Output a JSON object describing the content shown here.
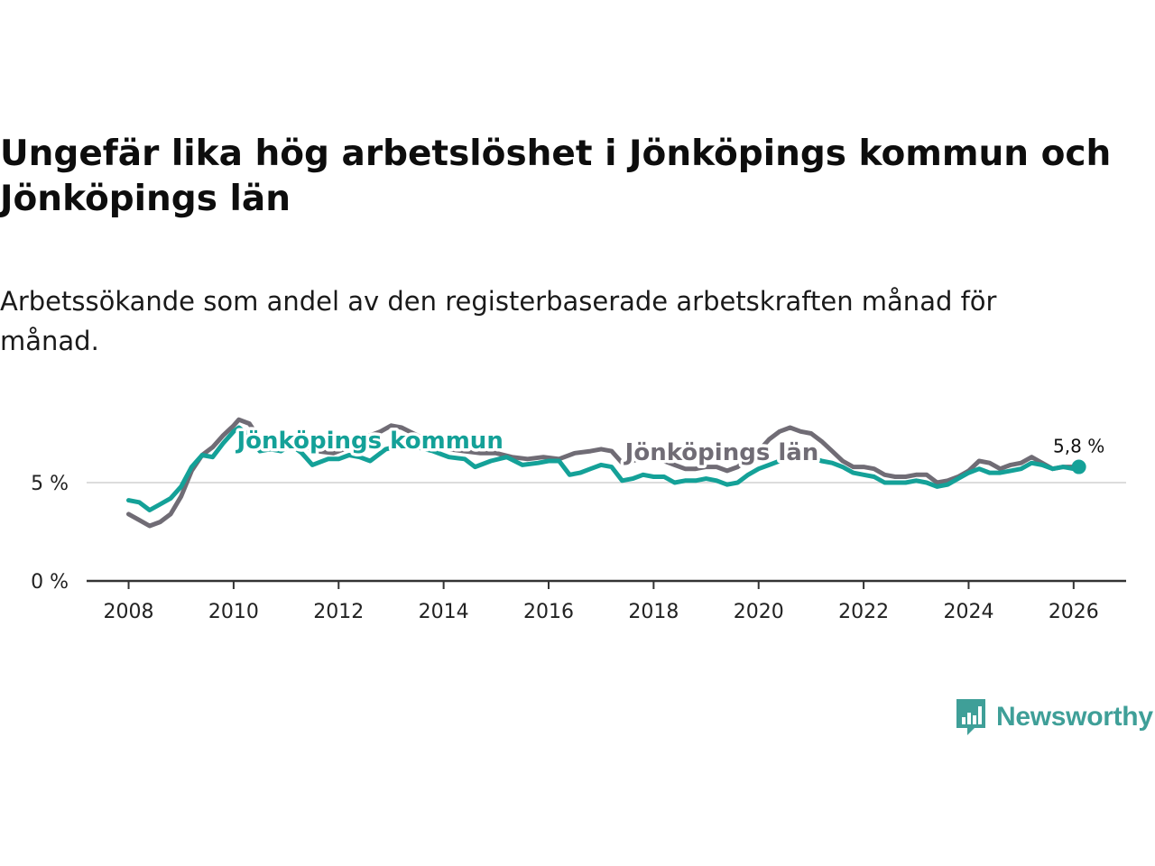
{
  "header": {
    "title": "Ungefär lika hög arbetslöshet i Jönköpings kommun och Jönköpings län",
    "subtitle": "Arbetssökande som andel av den registerbaserade arbetskraften månad för månad."
  },
  "branding": {
    "logo_text": "Newsworthy"
  },
  "colors": {
    "kommun": "#14a198",
    "lan": "#706c75",
    "axis": "#333333",
    "grid": "#dcdcdc",
    "brand": "#3f9f98"
  },
  "chart_data": {
    "type": "line",
    "title": "Ungefär lika hög arbetslöshet i Jönköpings kommun och Jönköpings län",
    "subtitle": "Arbetssökande som andel av den registerbaserade arbetskraften månad för månad.",
    "xlabel": "",
    "ylabel": "",
    "xlim": [
      2007.2,
      2027.0
    ],
    "ylim": [
      0,
      10
    ],
    "x_ticks": [
      2008,
      2010,
      2012,
      2014,
      2016,
      2018,
      2020,
      2022,
      2024,
      2026
    ],
    "x_tick_labels": [
      "2008",
      "2010",
      "2012",
      "2014",
      "2016",
      "2018",
      "2020",
      "2022",
      "2024",
      "2026"
    ],
    "y_ticks": [
      0,
      5
    ],
    "y_tick_labels": [
      "0 %",
      "5 %"
    ],
    "grid": "horizontal",
    "end_label": "5,8 %",
    "series": [
      {
        "name": "Jönköpings län",
        "label": "Jönköpings län",
        "color": "#706c75",
        "points": [
          [
            2008.0,
            3.4
          ],
          [
            2008.2,
            3.1
          ],
          [
            2008.4,
            2.8
          ],
          [
            2008.6,
            3.0
          ],
          [
            2008.8,
            3.4
          ],
          [
            2009.0,
            4.3
          ],
          [
            2009.2,
            5.6
          ],
          [
            2009.4,
            6.4
          ],
          [
            2009.6,
            6.8
          ],
          [
            2009.8,
            7.4
          ],
          [
            2010.0,
            7.9
          ],
          [
            2010.1,
            8.2
          ],
          [
            2010.3,
            8.0
          ],
          [
            2010.5,
            7.2
          ],
          [
            2010.7,
            7.0
          ],
          [
            2010.9,
            7.1
          ],
          [
            2011.1,
            7.2
          ],
          [
            2011.3,
            6.9
          ],
          [
            2011.6,
            6.6
          ],
          [
            2011.9,
            6.5
          ],
          [
            2012.2,
            6.8
          ],
          [
            2012.5,
            7.3
          ],
          [
            2012.8,
            7.6
          ],
          [
            2013.0,
            7.9
          ],
          [
            2013.2,
            7.8
          ],
          [
            2013.5,
            7.4
          ],
          [
            2013.8,
            7.0
          ],
          [
            2014.1,
            6.7
          ],
          [
            2014.4,
            6.6
          ],
          [
            2014.7,
            6.5
          ],
          [
            2015.0,
            6.5
          ],
          [
            2015.3,
            6.3
          ],
          [
            2015.6,
            6.2
          ],
          [
            2015.9,
            6.3
          ],
          [
            2016.2,
            6.2
          ],
          [
            2016.5,
            6.5
          ],
          [
            2016.8,
            6.6
          ],
          [
            2017.0,
            6.7
          ],
          [
            2017.2,
            6.6
          ],
          [
            2017.4,
            6.0
          ],
          [
            2017.6,
            6.1
          ],
          [
            2017.8,
            6.3
          ],
          [
            2018.0,
            6.3
          ],
          [
            2018.2,
            6.1
          ],
          [
            2018.4,
            5.9
          ],
          [
            2018.6,
            5.7
          ],
          [
            2018.8,
            5.7
          ],
          [
            2019.0,
            5.8
          ],
          [
            2019.2,
            5.8
          ],
          [
            2019.4,
            5.6
          ],
          [
            2019.6,
            5.8
          ],
          [
            2019.8,
            6.2
          ],
          [
            2020.0,
            6.6
          ],
          [
            2020.2,
            7.2
          ],
          [
            2020.4,
            7.6
          ],
          [
            2020.6,
            7.8
          ],
          [
            2020.8,
            7.6
          ],
          [
            2021.0,
            7.5
          ],
          [
            2021.2,
            7.1
          ],
          [
            2021.4,
            6.6
          ],
          [
            2021.6,
            6.1
          ],
          [
            2021.8,
            5.8
          ],
          [
            2022.0,
            5.8
          ],
          [
            2022.2,
            5.7
          ],
          [
            2022.4,
            5.4
          ],
          [
            2022.6,
            5.3
          ],
          [
            2022.8,
            5.3
          ],
          [
            2023.0,
            5.4
          ],
          [
            2023.2,
            5.4
          ],
          [
            2023.4,
            5.0
          ],
          [
            2023.6,
            5.1
          ],
          [
            2023.8,
            5.3
          ],
          [
            2024.0,
            5.6
          ],
          [
            2024.2,
            6.1
          ],
          [
            2024.4,
            6.0
          ],
          [
            2024.6,
            5.7
          ],
          [
            2024.8,
            5.9
          ],
          [
            2025.0,
            6.0
          ],
          [
            2025.2,
            6.3
          ],
          [
            2025.4,
            6.0
          ],
          [
            2025.6,
            5.7
          ],
          [
            2025.8,
            5.8
          ],
          [
            2026.0,
            5.8
          ],
          [
            2026.1,
            5.8
          ]
        ]
      },
      {
        "name": "Jönköpings kommun",
        "label": "Jönköpings kommun",
        "color": "#14a198",
        "points": [
          [
            2008.0,
            4.1
          ],
          [
            2008.2,
            4.0
          ],
          [
            2008.4,
            3.6
          ],
          [
            2008.6,
            3.9
          ],
          [
            2008.8,
            4.2
          ],
          [
            2009.0,
            4.8
          ],
          [
            2009.2,
            5.8
          ],
          [
            2009.4,
            6.4
          ],
          [
            2009.6,
            6.3
          ],
          [
            2009.8,
            7.0
          ],
          [
            2010.0,
            7.6
          ],
          [
            2010.1,
            7.8
          ],
          [
            2010.3,
            7.4
          ],
          [
            2010.5,
            6.6
          ],
          [
            2010.7,
            6.7
          ],
          [
            2010.9,
            6.6
          ],
          [
            2011.1,
            6.9
          ],
          [
            2011.3,
            6.5
          ],
          [
            2011.5,
            5.9
          ],
          [
            2011.8,
            6.2
          ],
          [
            2012.0,
            6.2
          ],
          [
            2012.2,
            6.4
          ],
          [
            2012.4,
            6.3
          ],
          [
            2012.6,
            6.1
          ],
          [
            2012.9,
            6.7
          ],
          [
            2013.2,
            6.9
          ],
          [
            2013.5,
            6.8
          ],
          [
            2013.8,
            6.6
          ],
          [
            2014.1,
            6.3
          ],
          [
            2014.4,
            6.2
          ],
          [
            2014.6,
            5.8
          ],
          [
            2014.9,
            6.1
          ],
          [
            2015.2,
            6.3
          ],
          [
            2015.5,
            5.9
          ],
          [
            2015.8,
            6.0
          ],
          [
            2016.0,
            6.1
          ],
          [
            2016.2,
            6.1
          ],
          [
            2016.4,
            5.4
          ],
          [
            2016.6,
            5.5
          ],
          [
            2016.8,
            5.7
          ],
          [
            2017.0,
            5.9
          ],
          [
            2017.2,
            5.8
          ],
          [
            2017.4,
            5.1
          ],
          [
            2017.6,
            5.2
          ],
          [
            2017.8,
            5.4
          ],
          [
            2018.0,
            5.3
          ],
          [
            2018.2,
            5.3
          ],
          [
            2018.4,
            5.0
          ],
          [
            2018.6,
            5.1
          ],
          [
            2018.8,
            5.1
          ],
          [
            2019.0,
            5.2
          ],
          [
            2019.2,
            5.1
          ],
          [
            2019.4,
            4.9
          ],
          [
            2019.6,
            5.0
          ],
          [
            2019.8,
            5.4
          ],
          [
            2020.0,
            5.7
          ],
          [
            2020.2,
            5.9
          ],
          [
            2020.4,
            6.1
          ],
          [
            2020.6,
            6.3
          ],
          [
            2020.8,
            6.2
          ],
          [
            2021.0,
            6.3
          ],
          [
            2021.2,
            6.1
          ],
          [
            2021.4,
            6.0
          ],
          [
            2021.6,
            5.8
          ],
          [
            2021.8,
            5.5
          ],
          [
            2022.0,
            5.4
          ],
          [
            2022.2,
            5.3
          ],
          [
            2022.4,
            5.0
          ],
          [
            2022.6,
            5.0
          ],
          [
            2022.8,
            5.0
          ],
          [
            2023.0,
            5.1
          ],
          [
            2023.2,
            5.0
          ],
          [
            2023.4,
            4.8
          ],
          [
            2023.6,
            4.9
          ],
          [
            2023.8,
            5.2
          ],
          [
            2024.0,
            5.5
          ],
          [
            2024.2,
            5.7
          ],
          [
            2024.4,
            5.5
          ],
          [
            2024.6,
            5.5
          ],
          [
            2024.8,
            5.6
          ],
          [
            2025.0,
            5.7
          ],
          [
            2025.2,
            6.0
          ],
          [
            2025.4,
            5.9
          ],
          [
            2025.6,
            5.7
          ],
          [
            2025.8,
            5.8
          ],
          [
            2026.0,
            5.7
          ],
          [
            2026.1,
            5.8
          ]
        ]
      }
    ]
  }
}
